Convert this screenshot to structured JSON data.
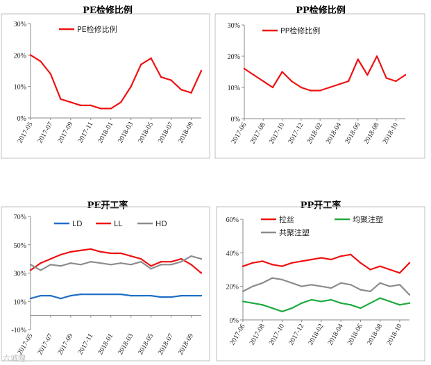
{
  "titles": [
    "PE检修比例",
    "PP检修比例",
    "PE开工率",
    "PP开工率"
  ],
  "watermark": "六城隍",
  "colors": {
    "red": "#ee1111",
    "blue": "#1f6fc5",
    "grey": "#8c8c8c",
    "green": "#1faa3f"
  },
  "chart_data": [
    {
      "type": "line",
      "title": "PE检修比例",
      "x_ticks": [
        "2017-05",
        "2017-07",
        "2017-09",
        "2017-11",
        "2018-01",
        "2018-03",
        "2018-05",
        "2018-07",
        "2018-09"
      ],
      "y_ticks": [
        "0%",
        "10%",
        "20%",
        "30%"
      ],
      "ylim": [
        0,
        30
      ],
      "x_range": [
        "2017-05",
        "2018-10"
      ],
      "series": [
        {
          "name": "PE检修比例",
          "color": "#ee1111",
          "x": [
            "2017-05",
            "2017-06",
            "2017-07",
            "2017-08",
            "2017-09",
            "2017-10",
            "2017-11",
            "2017-12",
            "2018-01",
            "2018-02",
            "2018-03",
            "2018-04",
            "2018-05",
            "2018-06",
            "2018-07",
            "2018-08",
            "2018-09",
            "2018-10"
          ],
          "values": [
            20,
            18,
            14,
            6,
            5,
            4,
            4,
            3,
            3,
            5,
            10,
            17,
            19,
            13,
            12,
            9,
            8,
            15
          ]
        }
      ]
    },
    {
      "type": "line",
      "title": "PP检修比例",
      "x_ticks": [
        "2017-06",
        "2017-08",
        "2017-10",
        "2017-12",
        "2018-02",
        "2018-04",
        "2018-06",
        "2018-08",
        "2018-10"
      ],
      "y_ticks": [
        "0%",
        "10%",
        "20%",
        "30%"
      ],
      "ylim": [
        0,
        30
      ],
      "x_range": [
        "2017-06",
        "2018-11"
      ],
      "series": [
        {
          "name": "PP检修比例",
          "color": "#ee1111",
          "x": [
            "2017-06",
            "2017-07",
            "2017-08",
            "2017-09",
            "2017-10",
            "2017-11",
            "2017-12",
            "2018-01",
            "2018-02",
            "2018-03",
            "2018-04",
            "2018-05",
            "2018-06",
            "2018-07",
            "2018-08",
            "2018-09",
            "2018-10",
            "2018-11"
          ],
          "values": [
            16,
            14,
            12,
            10,
            15,
            12,
            10,
            9,
            9,
            10,
            11,
            12,
            19,
            14,
            20,
            13,
            12,
            14
          ]
        }
      ]
    },
    {
      "type": "line",
      "title": "PE开工率",
      "x_ticks": [
        "2017-05",
        "2017-07",
        "2017-09",
        "2017-11",
        "2018-01",
        "2018-03",
        "2018-05",
        "2018-07",
        "2018-09"
      ],
      "y_ticks": [
        "-10%",
        "10%",
        "30%",
        "50%",
        "70%"
      ],
      "ylim": [
        -10,
        70
      ],
      "x_range": [
        "2017-05",
        "2018-10"
      ],
      "series": [
        {
          "name": "LD",
          "color": "#1f6fc5",
          "x": [
            "2017-05",
            "2017-06",
            "2017-07",
            "2017-08",
            "2017-09",
            "2017-10",
            "2017-11",
            "2017-12",
            "2018-01",
            "2018-02",
            "2018-03",
            "2018-04",
            "2018-05",
            "2018-06",
            "2018-07",
            "2018-08",
            "2018-09",
            "2018-10"
          ],
          "values": [
            12,
            14,
            14,
            12,
            14,
            15,
            15,
            15,
            15,
            15,
            14,
            14,
            14,
            13,
            13,
            14,
            14,
            14
          ]
        },
        {
          "name": "LL",
          "color": "#ee1111",
          "x": [
            "2017-05",
            "2017-06",
            "2017-07",
            "2017-08",
            "2017-09",
            "2017-10",
            "2017-11",
            "2017-12",
            "2018-01",
            "2018-02",
            "2018-03",
            "2018-04",
            "2018-05",
            "2018-06",
            "2018-07",
            "2018-08",
            "2018-09",
            "2018-10"
          ],
          "values": [
            32,
            37,
            40,
            43,
            45,
            46,
            47,
            45,
            44,
            44,
            42,
            40,
            35,
            38,
            38,
            40,
            36,
            30
          ]
        },
        {
          "name": "HD",
          "color": "#8c8c8c",
          "x": [
            "2017-05",
            "2017-06",
            "2017-07",
            "2017-08",
            "2017-09",
            "2017-10",
            "2017-11",
            "2017-12",
            "2018-01",
            "2018-02",
            "2018-03",
            "2018-04",
            "2018-05",
            "2018-06",
            "2018-07",
            "2018-08",
            "2018-09",
            "2018-10"
          ],
          "values": [
            36,
            32,
            36,
            35,
            37,
            36,
            38,
            37,
            36,
            37,
            36,
            38,
            33,
            36,
            36,
            38,
            42,
            40
          ]
        }
      ]
    },
    {
      "type": "line",
      "title": "PP开工率",
      "x_ticks": [
        "2017-06",
        "2017-08",
        "2017-10",
        "2017-12",
        "2018-02",
        "2018-04",
        "2018-06",
        "2018-08",
        "2018-10"
      ],
      "y_ticks": [
        "0%",
        "20%",
        "40%",
        "60%"
      ],
      "ylim": [
        0,
        60
      ],
      "x_range": [
        "2017-06",
        "2018-11"
      ],
      "series": [
        {
          "name": "拉丝",
          "color": "#ee1111",
          "x": [
            "2017-06",
            "2017-07",
            "2017-08",
            "2017-09",
            "2017-10",
            "2017-11",
            "2017-12",
            "2018-01",
            "2018-02",
            "2018-03",
            "2018-04",
            "2018-05",
            "2018-06",
            "2018-07",
            "2018-08",
            "2018-09",
            "2018-10",
            "2018-11"
          ],
          "values": [
            32,
            34,
            35,
            33,
            32,
            34,
            35,
            36,
            37,
            36,
            38,
            39,
            34,
            30,
            32,
            30,
            28,
            34
          ]
        },
        {
          "name": "均聚注塑",
          "color": "#1faa3f",
          "x": [
            "2017-06",
            "2017-07",
            "2017-08",
            "2017-09",
            "2017-10",
            "2017-11",
            "2017-12",
            "2018-01",
            "2018-02",
            "2018-03",
            "2018-04",
            "2018-05",
            "2018-06",
            "2018-07",
            "2018-08",
            "2018-09",
            "2018-10",
            "2018-11"
          ],
          "values": [
            11,
            10,
            9,
            7,
            5,
            7,
            10,
            12,
            11,
            12,
            10,
            9,
            7,
            10,
            13,
            11,
            9,
            10
          ]
        },
        {
          "name": "共聚注塑",
          "color": "#8c8c8c",
          "x": [
            "2017-06",
            "2017-07",
            "2017-08",
            "2017-09",
            "2017-10",
            "2017-11",
            "2017-12",
            "2018-01",
            "2018-02",
            "2018-03",
            "2018-04",
            "2018-05",
            "2018-06",
            "2018-07",
            "2018-08",
            "2018-09",
            "2018-10",
            "2018-11"
          ],
          "values": [
            17,
            20,
            22,
            25,
            24,
            22,
            20,
            21,
            20,
            19,
            22,
            21,
            18,
            17,
            22,
            20,
            21,
            15
          ]
        }
      ]
    }
  ]
}
